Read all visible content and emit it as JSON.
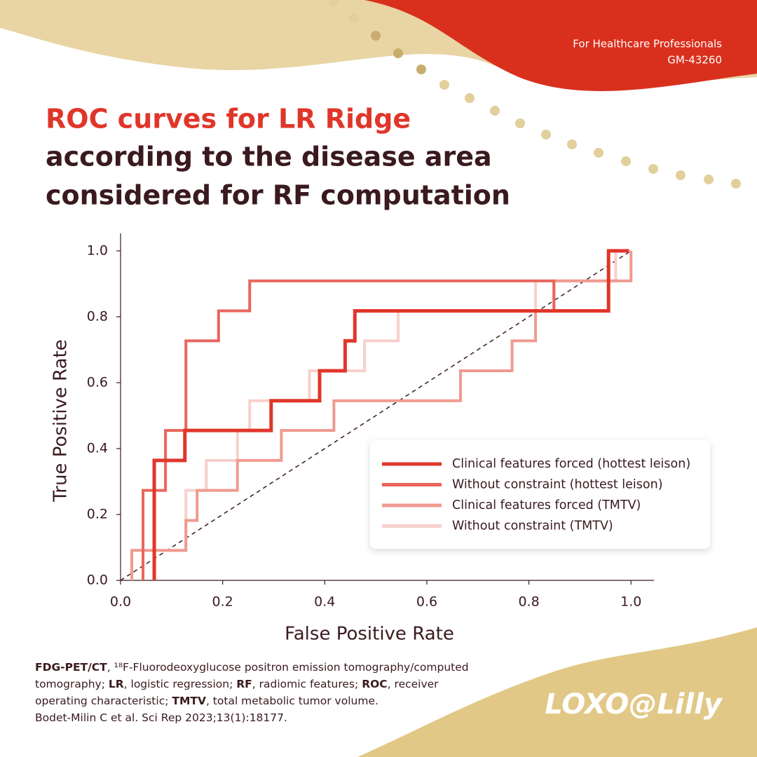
{
  "header": {
    "audience": "For Healthcare Professionals",
    "code": "GM-43260"
  },
  "chart_data": {
    "type": "line",
    "title_lines": [
      "ROC curves for LR Ridge",
      "according to the disease area",
      "considered for RF computation"
    ],
    "x_label": "False Positive Rate",
    "y_label": "True Positive Rate",
    "xlim": [
      0,
      1.045
    ],
    "ylim": [
      0,
      1.053
    ],
    "xticks": [
      {
        "value": 0,
        "label": "0.0"
      },
      {
        "value": 0.2,
        "label": "0.2"
      },
      {
        "value": 0.4,
        "label": "0.4"
      },
      {
        "value": 0.6,
        "label": "0.6"
      },
      {
        "value": 0.8,
        "label": "0.8"
      },
      {
        "value": 1,
        "label": "1.0"
      }
    ],
    "yticks": [
      {
        "value": 0,
        "label": "0.0"
      },
      {
        "value": 0.2,
        "label": "0.2"
      },
      {
        "value": 0.4,
        "label": "0.4"
      },
      {
        "value": 0.6,
        "label": "0.6"
      },
      {
        "value": 0.8,
        "label": "0.8"
      },
      {
        "value": 1,
        "label": "1.0"
      }
    ],
    "legend_position": "lower right",
    "reference_line": {
      "x": [
        0,
        1
      ],
      "y": [
        0,
        1
      ],
      "color": "#3a1a1f",
      "style": "dashed"
    },
    "series": [
      {
        "name": "Clinical features forced (hottest leison)",
        "color": "#e0362a",
        "x": [
          0.066,
          0.066,
          0.126,
          0.126,
          0.295,
          0.295,
          0.39,
          0.39,
          0.44,
          0.44,
          0.459,
          0.459,
          0.956,
          0.956,
          0.996
        ],
        "values": [
          0,
          0.364,
          0.364,
          0.455,
          0.455,
          0.545,
          0.545,
          0.636,
          0.636,
          0.727,
          0.727,
          0.818,
          0.818,
          1,
          1
        ]
      },
      {
        "name": "Without constraint (hottest leison)",
        "color": "#e8665c",
        "x": [
          0.044,
          0.044,
          0.088,
          0.088,
          0.128,
          0.128,
          0.192,
          0.192,
          0.253,
          0.253,
          0.849,
          0.849
        ],
        "values": [
          0,
          0.273,
          0.273,
          0.455,
          0.455,
          0.727,
          0.727,
          0.818,
          0.818,
          0.909,
          0.909,
          0.818
        ]
      },
      {
        "name": "Clinical features forced (TMTV)",
        "color": "#f09a90",
        "x": [
          0.022,
          0.022,
          0.128,
          0.128,
          0.15,
          0.15,
          0.229,
          0.229,
          0.315,
          0.315,
          0.418,
          0.418,
          0.666,
          0.666,
          0.767,
          0.767,
          0.813,
          0.813,
          0.849,
          0.849,
          1,
          1
        ],
        "values": [
          0,
          0.091,
          0.091,
          0.182,
          0.182,
          0.273,
          0.273,
          0.364,
          0.364,
          0.455,
          0.455,
          0.545,
          0.545,
          0.636,
          0.636,
          0.727,
          0.727,
          0.818,
          0.818,
          0.909,
          0.909,
          1
        ]
      },
      {
        "name": "Without constraint (TMTV)",
        "color": "#f8d0ca",
        "x": [
          0.022,
          0.022,
          0.128,
          0.128,
          0.168,
          0.168,
          0.229,
          0.229,
          0.253,
          0.253,
          0.37,
          0.37,
          0.478,
          0.478,
          0.544,
          0.544,
          0.813,
          0.813,
          0.97,
          0.97,
          1
        ],
        "values": [
          0,
          0.091,
          0.091,
          0.273,
          0.273,
          0.364,
          0.364,
          0.455,
          0.455,
          0.545,
          0.545,
          0.636,
          0.636,
          0.727,
          0.727,
          0.818,
          0.818,
          0.909,
          0.909,
          1,
          1
        ]
      }
    ]
  },
  "footnote": [
    {
      "term": "FDG-PET/CT",
      "text": ", ¹⁸F-Fluorodeoxyglucose positron emission tomography/computed tomography; "
    },
    {
      "term": "LR",
      "text": ", logistic regression; "
    },
    {
      "term": "RF",
      "text": ", radiomic features; "
    },
    {
      "term": "ROC",
      "text": ", receiver operating characteristic; "
    },
    {
      "term": "TMTV",
      "text": ", total metabolic tumor volume."
    }
  ],
  "reference": "Bodet-Milin C et al. Sci Rep 2023;13(1):18177.",
  "logo": "LOXO@Lilly"
}
